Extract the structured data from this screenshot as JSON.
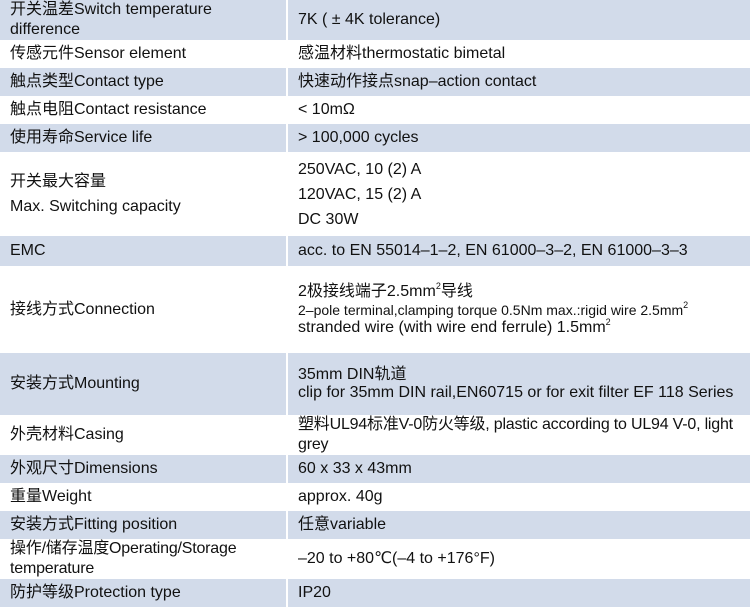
{
  "specs": [
    {
      "key": "开关温差Switch temperature difference",
      "value": "7K ( ± 4K tolerance)"
    },
    {
      "key": "传感元件Sensor element",
      "value": "感温材料thermostatic bimetal"
    },
    {
      "key": "触点类型Contact type",
      "value": "快速动作接点snap–action contact"
    },
    {
      "key": "触点电阻Contact resistance",
      "value": "< 10mΩ"
    },
    {
      "key": "使用寿命Service life",
      "value": "> 100,000 cycles"
    },
    {
      "key_cn": "开关最大容量",
      "key_en": "Max. Switching capacity",
      "values": [
        "250VAC, 10 (2) A",
        "120VAC, 15 (2) A",
        "DC 30W"
      ]
    },
    {
      "key": "EMC",
      "value": "acc. to EN 55014–1–2, EN 61000–3–2, EN 61000–3–3"
    },
    {
      "key": "接线方式Connection",
      "line1": "2极接线端子2.5mm",
      "line1_sup": "2",
      "line1_tail": "导线",
      "line2": "2–pole terminal,clamping torque 0.5Nm max.:rigid wire 2.5mm",
      "line2_sup": "2",
      "line3": "stranded wire (with wire end ferrule) 1.5mm",
      "line3_sup": "2"
    },
    {
      "key": "安装方式Mounting",
      "line1": "35mm DIN轨道",
      "line2": "clip for 35mm DIN rail,EN60715 or for exit filter EF 118 Series"
    },
    {
      "key": "外壳材料Casing",
      "value": "塑料UL94标准V-0防火等级, plastic according to UL94 V-0, light grey"
    },
    {
      "key": "外观尺寸Dimensions",
      "value": "60 x 33 x 43mm"
    },
    {
      "key": "重量Weight",
      "value": "approx. 40g"
    },
    {
      "key": "安装方式Fitting position",
      "value": "任意variable"
    },
    {
      "key": "操作/储存温度Operating/Storage temperature",
      "value": "–20 to +80℃(–4 to +176°F)"
    },
    {
      "key": "防护等级Protection type",
      "value": "IP20"
    }
  ]
}
